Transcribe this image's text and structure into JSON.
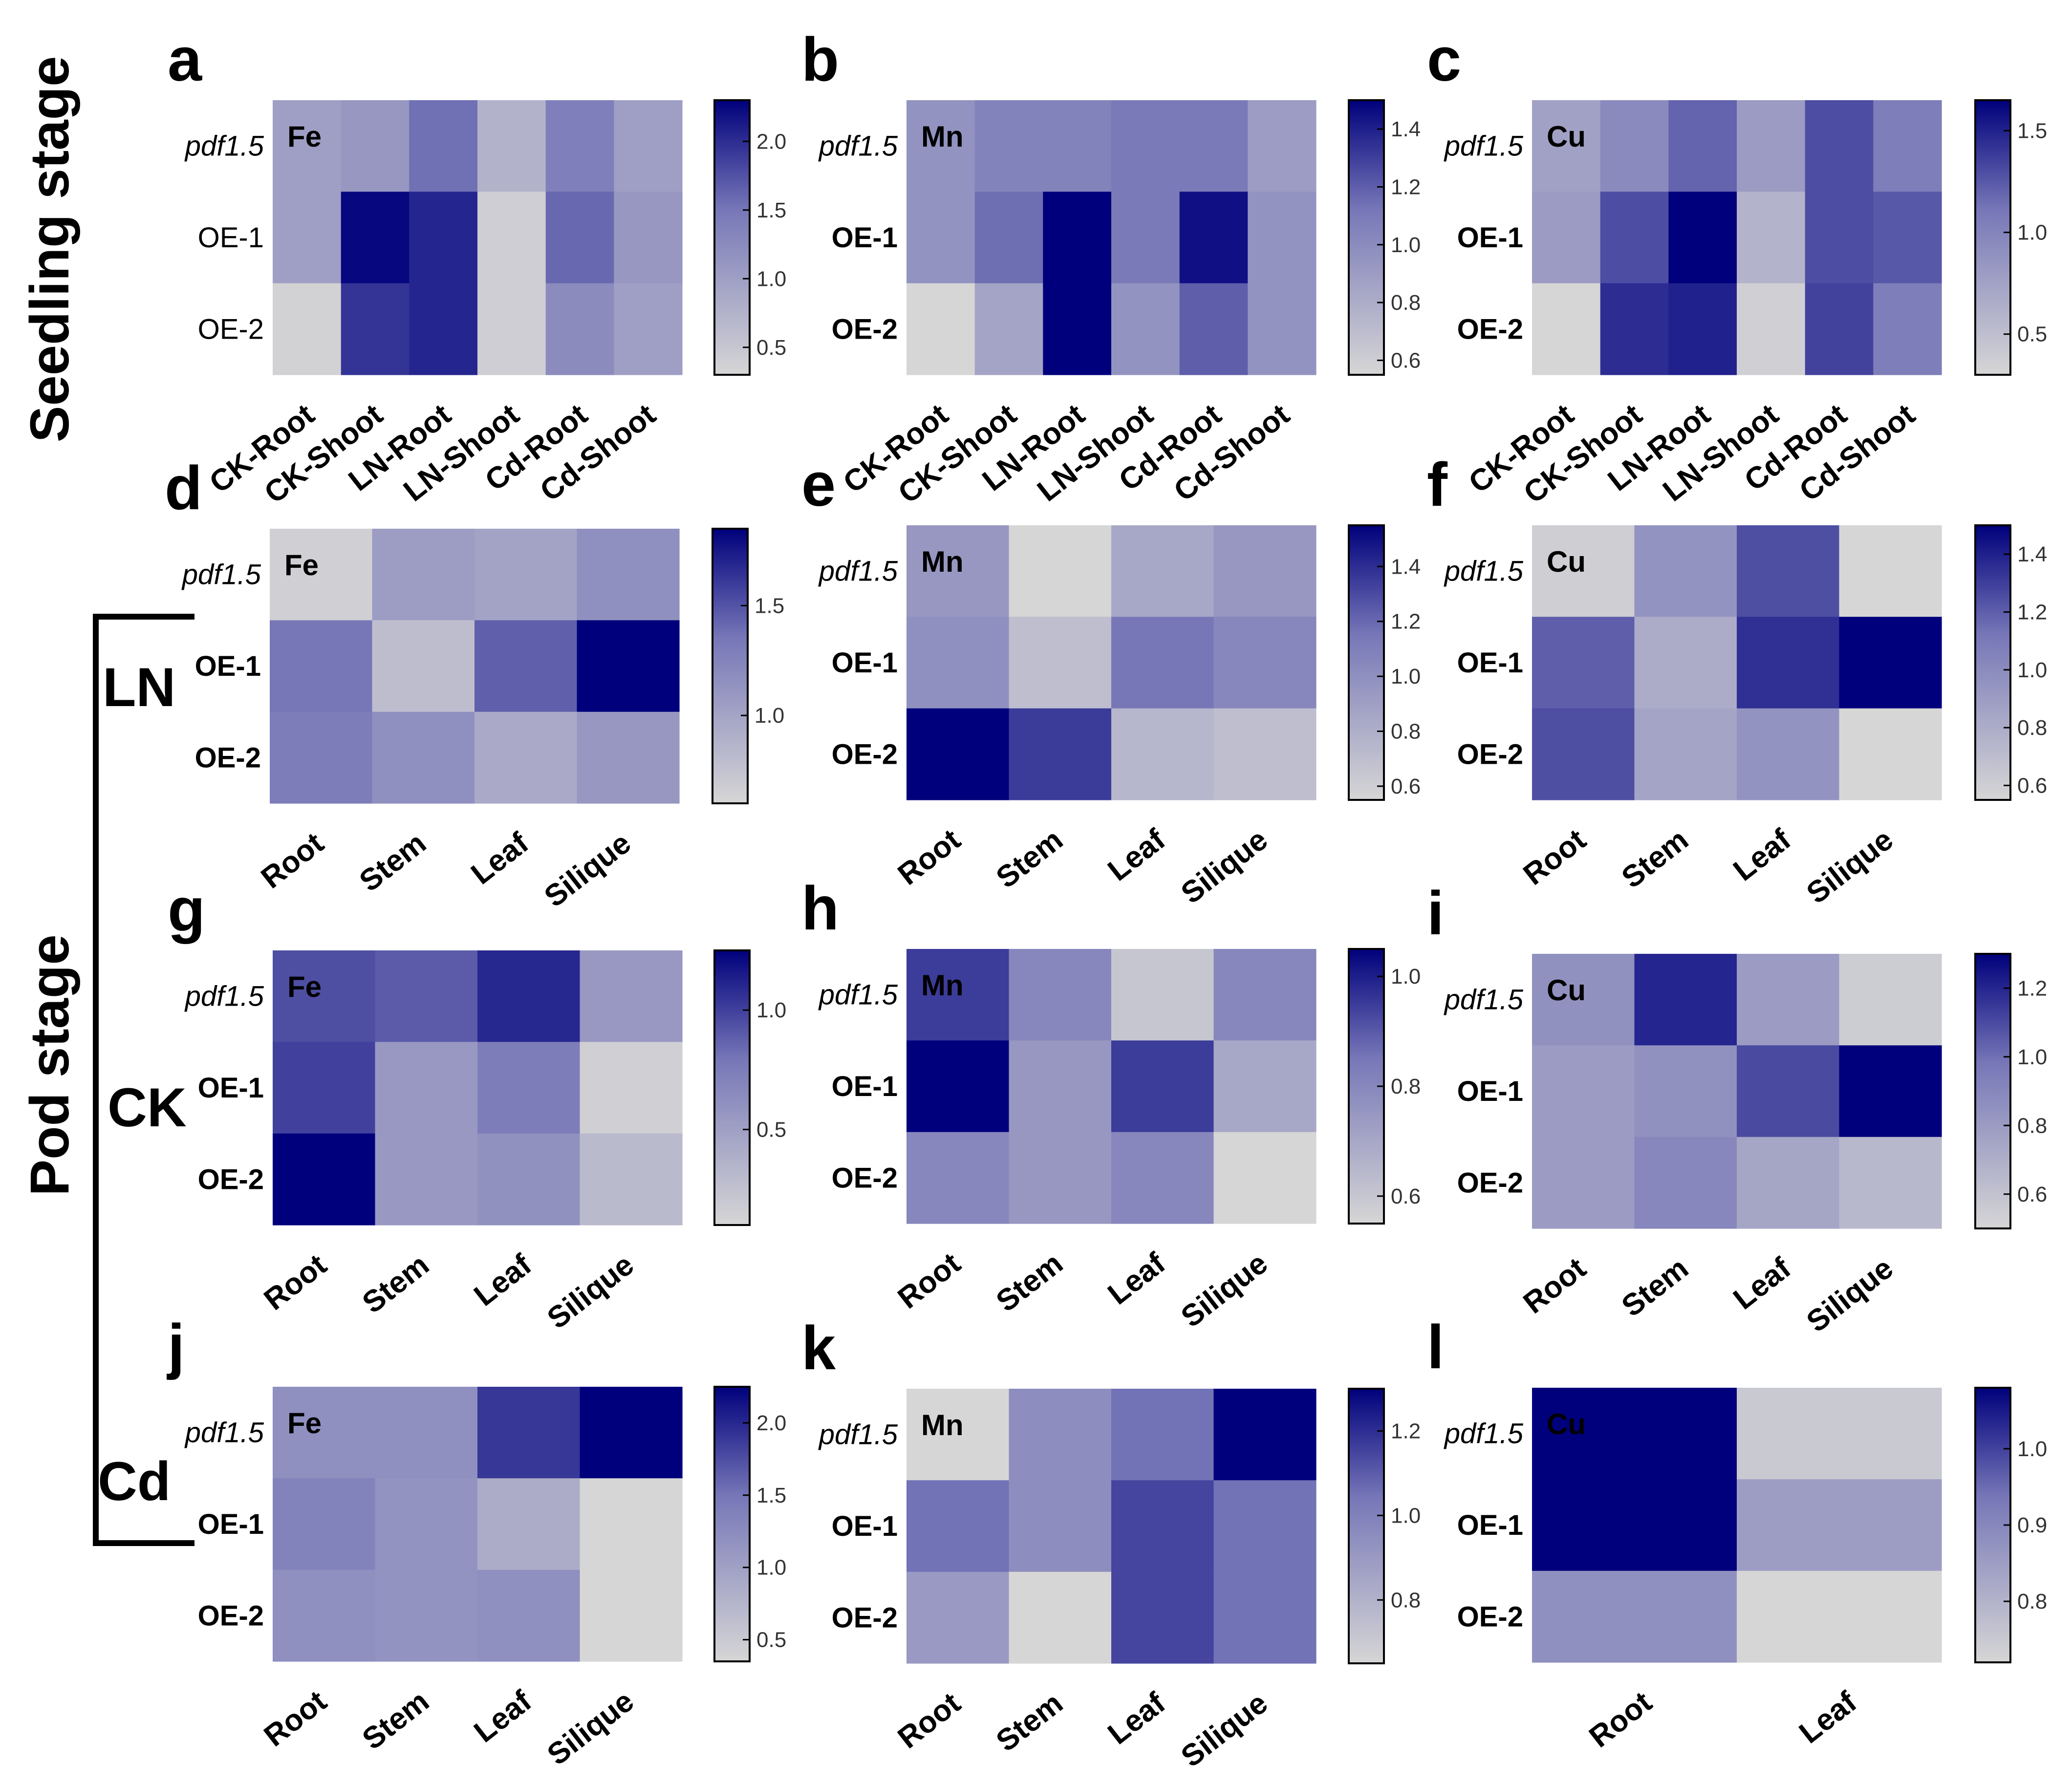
{
  "stages": {
    "seedling": "Seedling stage",
    "pod": "Pod stage"
  },
  "treatments": [
    "LN",
    "CK",
    "Cd"
  ],
  "colors": {
    "low": "#d6d6d6",
    "mid": "#7777b8",
    "high": "#00007c"
  },
  "chart_data": [
    {
      "type": "heatmap",
      "letter": "a",
      "element": "Fe",
      "rows": [
        "pdf1.5",
        "OE-1",
        "OE-2"
      ],
      "columns": [
        "CK-Root",
        "CK-Shoot",
        "LN-Root",
        "LN-Shoot",
        "Cd-Root",
        "Cd-Shoot"
      ],
      "values": [
        [
          1.0,
          1.1,
          1.55,
          0.75,
          1.4,
          1.0
        ],
        [
          1.0,
          2.25,
          2.05,
          0.4,
          1.6,
          1.1
        ],
        [
          0.35,
          1.95,
          2.05,
          0.4,
          1.25,
          1.0
        ]
      ],
      "scale": [
        0.3,
        2.3
      ],
      "ticks": [
        2.0,
        1.5,
        1.0,
        0.5
      ]
    },
    {
      "type": "heatmap",
      "letter": "b",
      "element": "Mn",
      "rows": [
        "pdf1.5",
        "OE-1",
        "OE-2"
      ],
      "columns": [
        "CK-Root",
        "CK-Shoot",
        "LN-Root",
        "LN-Shoot",
        "Cd-Root",
        "Cd-Shoot"
      ],
      "values": [
        [
          0.95,
          1.05,
          1.05,
          1.1,
          1.1,
          0.9
        ],
        [
          0.95,
          1.15,
          1.5,
          1.1,
          1.45,
          0.95
        ],
        [
          0.55,
          0.85,
          1.5,
          0.95,
          1.2,
          0.95
        ]
      ],
      "scale": [
        0.55,
        1.5
      ],
      "ticks": [
        1.4,
        1.2,
        1.0,
        0.8,
        0.6
      ]
    },
    {
      "type": "heatmap",
      "letter": "c",
      "element": "Cu",
      "rows": [
        "pdf1.5",
        "OE-1",
        "OE-2"
      ],
      "columns": [
        "CK-Root",
        "CK-Shoot",
        "LN-Root",
        "LN-Shoot",
        "Cd-Root",
        "Cd-Shoot"
      ],
      "values": [
        [
          0.75,
          0.95,
          1.2,
          0.8,
          1.3,
          1.05
        ],
        [
          0.8,
          1.3,
          1.65,
          0.6,
          1.3,
          1.25
        ],
        [
          0.3,
          1.45,
          1.5,
          0.35,
          1.35,
          1.05
        ]
      ],
      "scale": [
        0.3,
        1.65
      ],
      "ticks": [
        1.5,
        1.0,
        0.5
      ]
    },
    {
      "type": "heatmap",
      "letter": "d",
      "element": "Fe",
      "rows": [
        "pdf1.5",
        "OE-1",
        "OE-2"
      ],
      "columns": [
        "Root",
        "Stem",
        "Leaf",
        "Silique"
      ],
      "values": [
        [
          0.65,
          1.05,
          1.0,
          1.15
        ],
        [
          1.35,
          0.8,
          1.45,
          1.85
        ],
        [
          1.3,
          1.15,
          0.95,
          1.1
        ]
      ],
      "scale": [
        0.6,
        1.85
      ],
      "ticks": [
        1.5,
        1.0
      ]
    },
    {
      "type": "heatmap",
      "letter": "e",
      "element": "Mn",
      "rows": [
        "pdf1.5",
        "OE-1",
        "OE-2"
      ],
      "columns": [
        "Root",
        "Stem",
        "Leaf",
        "Silique"
      ],
      "values": [
        [
          0.95,
          0.55,
          0.85,
          0.95
        ],
        [
          1.0,
          0.7,
          1.15,
          1.05
        ],
        [
          1.55,
          1.35,
          0.75,
          0.7
        ]
      ],
      "scale": [
        0.55,
        1.55
      ],
      "ticks": [
        1.4,
        1.2,
        1.0,
        0.8,
        0.6
      ]
    },
    {
      "type": "heatmap",
      "letter": "f",
      "element": "Cu",
      "rows": [
        "pdf1.5",
        "OE-1",
        "OE-2"
      ],
      "columns": [
        "Root",
        "Stem",
        "Leaf",
        "Silique"
      ],
      "values": [
        [
          0.6,
          0.95,
          1.25,
          0.5
        ],
        [
          1.2,
          0.8,
          1.35,
          1.5
        ],
        [
          1.25,
          0.85,
          0.95,
          0.55
        ]
      ],
      "scale": [
        0.55,
        1.5
      ],
      "ticks": [
        1.4,
        1.2,
        1.0,
        0.8,
        0.6
      ]
    },
    {
      "type": "heatmap",
      "letter": "g",
      "element": "Fe",
      "rows": [
        "pdf1.5",
        "OE-1",
        "OE-2"
      ],
      "columns": [
        "Root",
        "Stem",
        "Leaf",
        "Silique"
      ],
      "values": [
        [
          0.95,
          0.9,
          1.1,
          0.55
        ],
        [
          1.0,
          0.55,
          0.75,
          0.15
        ],
        [
          1.25,
          0.55,
          0.6,
          0.3
        ]
      ],
      "scale": [
        0.1,
        1.25
      ],
      "ticks": [
        1.0,
        0.5
      ]
    },
    {
      "type": "heatmap",
      "letter": "h",
      "element": "Mn",
      "rows": [
        "pdf1.5",
        "OE-1",
        "OE-2"
      ],
      "columns": [
        "Root",
        "Stem",
        "Leaf",
        "Silique"
      ],
      "values": [
        [
          0.95,
          0.8,
          0.6,
          0.8
        ],
        [
          1.05,
          0.75,
          0.95,
          0.7
        ],
        [
          0.8,
          0.75,
          0.8,
          0.55
        ]
      ],
      "scale": [
        0.55,
        1.05
      ],
      "ticks": [
        1.0,
        0.8,
        0.6
      ]
    },
    {
      "type": "heatmap",
      "letter": "i",
      "element": "Cu",
      "rows": [
        "pdf1.5",
        "OE-1",
        "OE-2"
      ],
      "columns": [
        "Root",
        "Stem",
        "Leaf",
        "Silique"
      ],
      "values": [
        [
          0.85,
          1.2,
          0.8,
          0.55
        ],
        [
          0.8,
          0.85,
          1.1,
          1.3
        ],
        [
          0.8,
          0.9,
          0.75,
          0.65
        ]
      ],
      "scale": [
        0.5,
        1.3
      ],
      "ticks": [
        1.2,
        1.0,
        0.8,
        0.6
      ]
    },
    {
      "type": "heatmap",
      "letter": "j",
      "element": "Fe",
      "rows": [
        "pdf1.5",
        "OE-1",
        "OE-2"
      ],
      "columns": [
        "Root",
        "Stem",
        "Leaf",
        "Silique"
      ],
      "values": [
        [
          1.2,
          1.2,
          1.9,
          2.25
        ],
        [
          1.35,
          1.15,
          0.85,
          0.35
        ],
        [
          1.2,
          1.15,
          1.2,
          0.35
        ]
      ],
      "scale": [
        0.35,
        2.25
      ],
      "ticks": [
        2.0,
        1.5,
        1.0,
        0.5
      ]
    },
    {
      "type": "heatmap",
      "letter": "k",
      "element": "Mn",
      "rows": [
        "pdf1.5",
        "OE-1",
        "OE-2"
      ],
      "columns": [
        "Root",
        "Stem",
        "Leaf",
        "Silique"
      ],
      "values": [
        [
          0.65,
          0.95,
          1.05,
          1.3
        ],
        [
          1.05,
          0.95,
          1.15,
          1.05
        ],
        [
          0.9,
          0.65,
          1.15,
          1.05
        ]
      ],
      "scale": [
        0.65,
        1.3
      ],
      "ticks": [
        1.2,
        1.0,
        0.8
      ]
    },
    {
      "type": "heatmap",
      "letter": "l",
      "element": "Cu",
      "rows": [
        "pdf1.5",
        "OE-1",
        "OE-2"
      ],
      "columns": [
        "Root",
        "Leaf"
      ],
      "values": [
        [
          1.08,
          0.75
        ],
        [
          1.08,
          0.85
        ],
        [
          0.88,
          0.72
        ]
      ],
      "scale": [
        0.72,
        1.08
      ],
      "ticks": [
        1.0,
        0.9,
        0.8
      ]
    }
  ]
}
